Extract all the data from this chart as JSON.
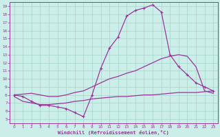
{
  "xlabel": "Windchill (Refroidissement éolien,°C)",
  "background_color": "#cceee8",
  "grid_color": "#aad8d0",
  "line_color": "#993399",
  "xlim": [
    -0.5,
    23.5
  ],
  "ylim": [
    4.5,
    19.5
  ],
  "yticks": [
    5,
    6,
    7,
    8,
    9,
    10,
    11,
    12,
    13,
    14,
    15,
    16,
    17,
    18,
    19
  ],
  "xticks": [
    0,
    1,
    2,
    3,
    4,
    5,
    6,
    7,
    8,
    9,
    10,
    11,
    12,
    13,
    14,
    15,
    16,
    17,
    18,
    19,
    20,
    21,
    22,
    23
  ],
  "top_curve_x": [
    0,
    1,
    2,
    3,
    4,
    5,
    6,
    7,
    8,
    9,
    10,
    11,
    12,
    13,
    14,
    15,
    16,
    17,
    18,
    19,
    20,
    21,
    22,
    23
  ],
  "top_curve_y": [
    8.0,
    7.8,
    7.2,
    6.7,
    6.7,
    6.5,
    6.3,
    5.8,
    5.3,
    8.0,
    11.3,
    13.8,
    15.2,
    17.8,
    18.5,
    18.8,
    19.2,
    18.3,
    13.0,
    11.5,
    10.5,
    9.5,
    9.0,
    8.5
  ],
  "mid_curve_x": [
    0,
    1,
    2,
    3,
    4,
    5,
    6,
    7,
    8,
    9,
    10,
    11,
    12,
    13,
    14,
    15,
    16,
    17,
    18,
    19,
    20,
    21,
    22,
    23
  ],
  "mid_curve_y": [
    8.0,
    8.1,
    8.2,
    8.0,
    7.8,
    7.8,
    8.0,
    8.3,
    8.5,
    9.0,
    9.5,
    10.0,
    10.3,
    10.7,
    11.0,
    11.5,
    12.0,
    12.5,
    12.8,
    13.0,
    12.8,
    11.5,
    8.5,
    8.2
  ],
  "bot_curve_x": [
    0,
    1,
    2,
    3,
    4,
    5,
    6,
    7,
    8,
    9,
    10,
    11,
    12,
    13,
    14,
    15,
    16,
    17,
    18,
    19,
    20,
    21,
    22,
    23
  ],
  "bot_curve_y": [
    7.8,
    7.2,
    7.0,
    6.8,
    6.8,
    6.9,
    7.0,
    7.2,
    7.3,
    7.5,
    7.6,
    7.7,
    7.8,
    7.8,
    7.9,
    8.0,
    8.0,
    8.1,
    8.2,
    8.3,
    8.3,
    8.3,
    8.4,
    8.5
  ]
}
